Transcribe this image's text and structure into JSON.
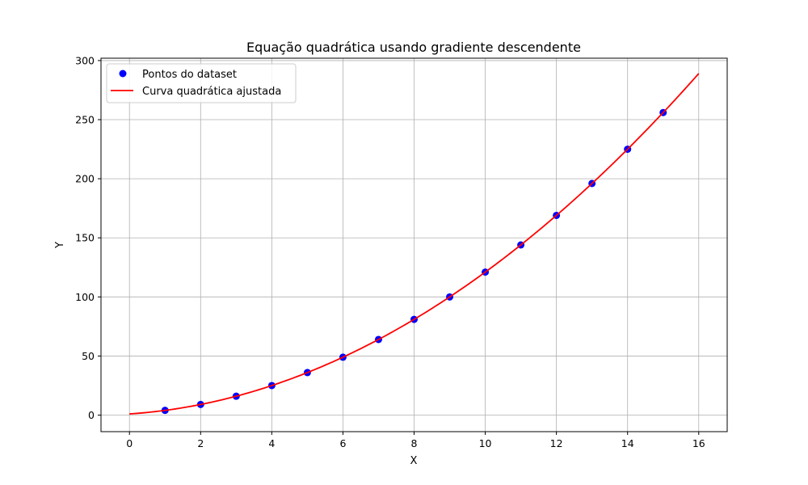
{
  "chart_data": {
    "type": "scatter",
    "title": "Equação quadrática usando gradiente descendente",
    "xlabel": "X",
    "ylabel": "Y",
    "xlim": [
      -0.8,
      16.8
    ],
    "ylim": [
      -14,
      302
    ],
    "xticks": [
      0,
      2,
      4,
      6,
      8,
      10,
      12,
      14,
      16
    ],
    "yticks": [
      0,
      50,
      100,
      150,
      200,
      250,
      300
    ],
    "grid": true,
    "legend_position": "top-left",
    "series": [
      {
        "name": "Pontos do dataset",
        "kind": "scatter",
        "color": "#0000ff",
        "x": [
          1,
          2,
          3,
          4,
          5,
          6,
          7,
          8,
          9,
          10,
          11,
          12,
          13,
          14,
          15
        ],
        "y": [
          4,
          9,
          16,
          25,
          36,
          49,
          64,
          81,
          100,
          121,
          144,
          169,
          196,
          225,
          256
        ]
      },
      {
        "name": "Curva quadrática ajustada",
        "kind": "line",
        "color": "#ff0000",
        "equation": "y = (x + 1)^2",
        "x_range": [
          0,
          16
        ]
      }
    ]
  }
}
